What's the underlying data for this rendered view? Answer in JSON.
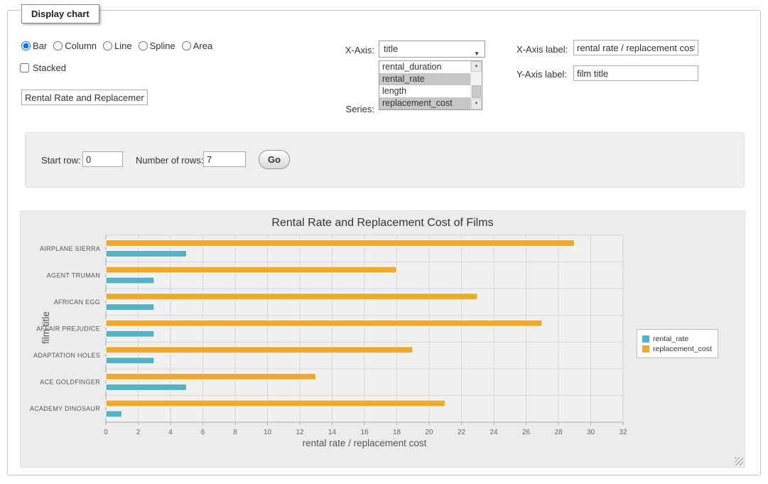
{
  "panel": {
    "legend": "Display chart"
  },
  "controls": {
    "chart_types": [
      {
        "label": "Bar",
        "selected": true
      },
      {
        "label": "Column",
        "selected": false
      },
      {
        "label": "Line",
        "selected": false
      },
      {
        "label": "Spline",
        "selected": false
      },
      {
        "label": "Area",
        "selected": false
      }
    ],
    "stacked": {
      "label": "Stacked",
      "checked": false
    },
    "title_input": {
      "value": "Rental Rate and Replacement Cost of Films"
    },
    "x_axis": {
      "label": "X-Axis:",
      "value": "title"
    },
    "series_select": {
      "label": "Series:",
      "options": [
        {
          "label": "rental_duration",
          "selected": false
        },
        {
          "label": "rental_rate",
          "selected": true
        },
        {
          "label": "length",
          "selected": false
        },
        {
          "label": "replacement_cost",
          "selected": true
        }
      ]
    },
    "x_axis_label": {
      "label": "X-Axis label:",
      "value": "rental rate / replacement cost"
    },
    "y_axis_label": {
      "label": "Y-Axis label:",
      "value": "film title"
    }
  },
  "rows_panel": {
    "start_row_label": "Start row:",
    "start_row_value": "0",
    "num_rows_label": "Number of rows:",
    "num_rows_value": "7",
    "go_label": "Go"
  },
  "chart_data": {
    "type": "bar",
    "title": "Rental Rate and Replacement Cost of Films",
    "xlabel": "rental rate / replacement cost",
    "ylabel": "film title",
    "categories": [
      "AIRPLANE SIERRA",
      "AGENT TRUMAN",
      "AFRICAN EGG",
      "AFFAIR PREJUDICE",
      "ADAPTATION HOLES",
      "ACE GOLDFINGER",
      "ACADEMY DINOSAUR"
    ],
    "series": [
      {
        "name": "rental_rate",
        "color": "#54B2C5",
        "values": [
          4.99,
          2.99,
          2.99,
          2.99,
          2.99,
          4.99,
          0.99
        ]
      },
      {
        "name": "replacement_cost",
        "color": "#EFA92E",
        "values": [
          28.99,
          17.99,
          22.99,
          26.99,
          18.99,
          12.99,
          20.99
        ]
      }
    ],
    "bar_order": [
      1,
      0
    ],
    "xlim": [
      0,
      32
    ],
    "x_ticks": [
      0,
      2,
      4,
      6,
      8,
      10,
      12,
      14,
      16,
      18,
      20,
      22,
      24,
      26,
      28,
      30,
      32
    ],
    "grid": true,
    "legend_position": "right"
  }
}
